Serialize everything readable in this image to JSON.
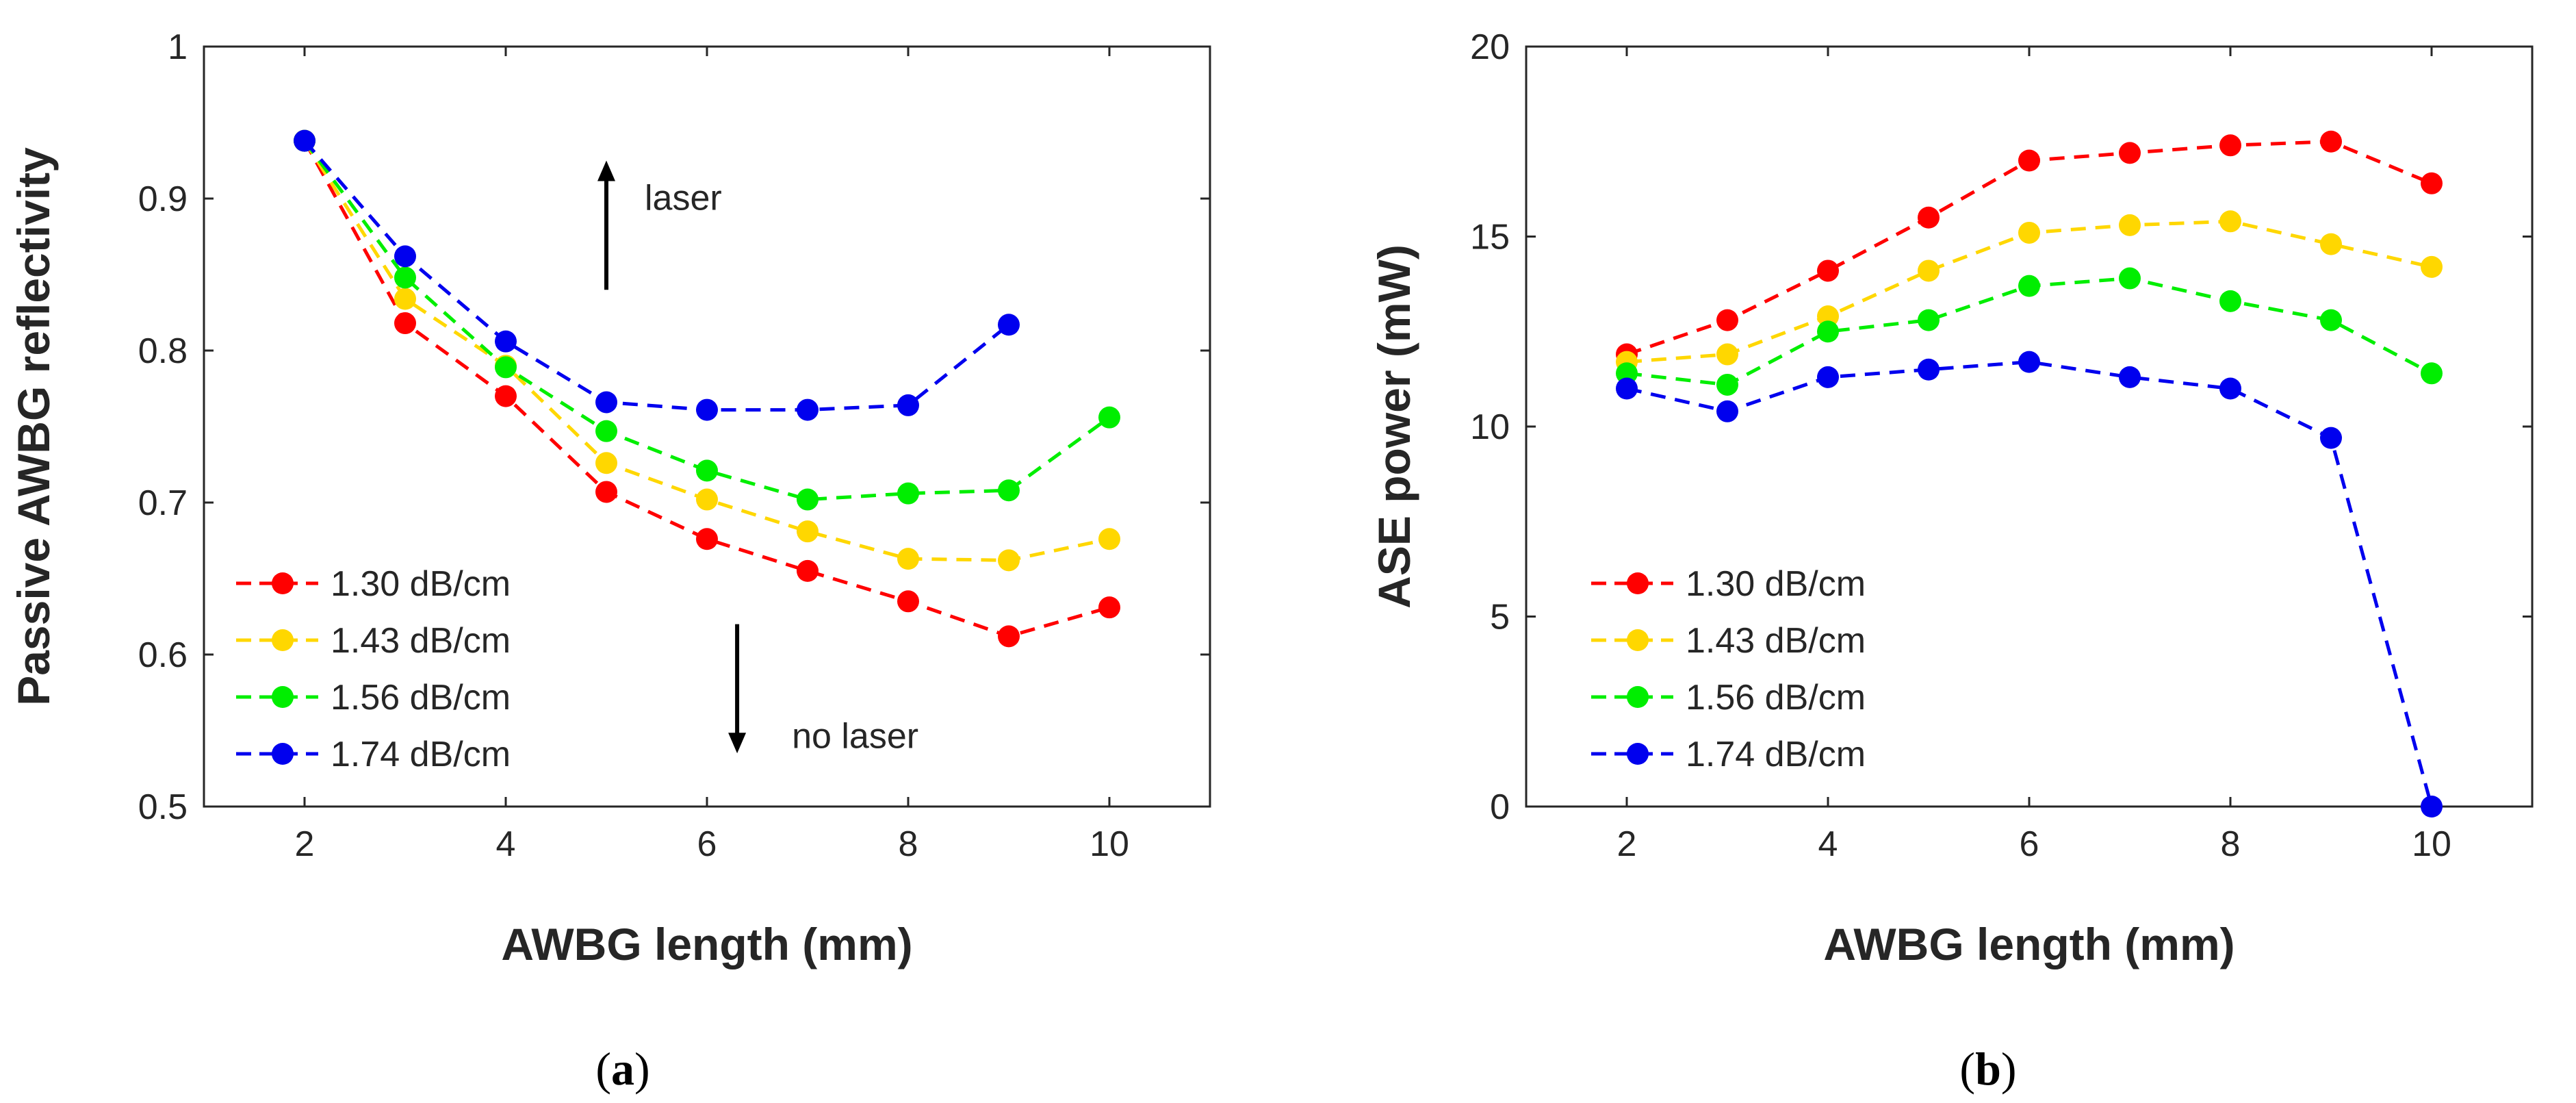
{
  "chart_data": [
    {
      "id": "a",
      "type": "line",
      "caption": "a",
      "xlabel": "AWBG length (mm)",
      "ylabel": "Passive AWBG reflectivity",
      "xlim": [
        1,
        11
      ],
      "ylim": [
        0.5,
        1
      ],
      "xticks": [
        2,
        4,
        6,
        8,
        10
      ],
      "yticks": [
        0.5,
        0.6,
        0.7,
        0.8,
        0.9,
        1
      ],
      "ytick_labels": [
        "0.5",
        "0.6",
        "0.7",
        "0.8",
        "0.9",
        "1"
      ],
      "legend_position": "bottom-left",
      "series": [
        {
          "name": "1.30 dB/cm",
          "color": "#ff0000",
          "x": [
            2,
            3,
            4,
            5,
            6,
            7,
            8,
            9,
            10
          ],
          "values": [
            0.938,
            0.818,
            0.77,
            0.707,
            0.676,
            0.655,
            0.635,
            0.612,
            0.631
          ]
        },
        {
          "name": "1.43 dB/cm",
          "color": "#ffd700",
          "x": [
            2,
            3,
            4,
            5,
            6,
            7,
            8,
            9,
            10
          ],
          "values": [
            0.938,
            0.834,
            0.79,
            0.726,
            0.702,
            0.681,
            0.663,
            0.662,
            0.676
          ]
        },
        {
          "name": "1.56 dB/cm",
          "color": "#00ee00",
          "x": [
            2,
            3,
            4,
            5,
            6,
            7,
            8,
            9,
            10
          ],
          "values": [
            0.938,
            0.848,
            0.789,
            0.747,
            0.721,
            0.702,
            0.706,
            0.708,
            0.756
          ]
        },
        {
          "name": "1.74 dB/cm",
          "color": "#0000ee",
          "x": [
            2,
            3,
            4,
            5,
            6,
            7,
            8,
            9
          ],
          "values": [
            0.938,
            0.862,
            0.806,
            0.766,
            0.761,
            0.761,
            0.764,
            0.817
          ]
        }
      ],
      "annotations": [
        {
          "text": "laser",
          "direction": "up",
          "x": 5,
          "y_from": 0.84,
          "y_to": 0.925
        },
        {
          "text": "no laser",
          "direction": "down",
          "x": 6.3,
          "y_from": 0.62,
          "y_to": 0.535
        }
      ]
    },
    {
      "id": "b",
      "type": "line",
      "caption": "b",
      "xlabel": "AWBG length (mm)",
      "ylabel": "ASE power (mW)",
      "xlim": [
        1,
        11
      ],
      "ylim": [
        0,
        20
      ],
      "xticks": [
        2,
        4,
        6,
        8,
        10
      ],
      "yticks": [
        0,
        5,
        10,
        15,
        20
      ],
      "ytick_labels": [
        "0",
        "5",
        "10",
        "15",
        "20"
      ],
      "legend_position": "bottom-left",
      "series": [
        {
          "name": "1.30 dB/cm",
          "color": "#ff0000",
          "x": [
            2,
            3,
            4,
            5,
            6,
            7,
            8,
            9,
            10
          ],
          "values": [
            11.9,
            12.8,
            14.1,
            15.5,
            17.0,
            17.2,
            17.4,
            17.5,
            16.4
          ]
        },
        {
          "name": "1.43 dB/cm",
          "color": "#ffd700",
          "x": [
            2,
            3,
            4,
            5,
            6,
            7,
            8,
            9,
            10
          ],
          "values": [
            11.7,
            11.9,
            12.9,
            14.1,
            15.1,
            15.3,
            15.4,
            14.8,
            14.2
          ]
        },
        {
          "name": "1.56 dB/cm",
          "color": "#00ee00",
          "x": [
            2,
            3,
            4,
            5,
            6,
            7,
            8,
            9,
            10
          ],
          "values": [
            11.4,
            11.1,
            12.5,
            12.8,
            13.7,
            13.9,
            13.3,
            12.8,
            11.4
          ]
        },
        {
          "name": "1.74 dB/cm",
          "color": "#0000ee",
          "x": [
            2,
            3,
            4,
            5,
            6,
            7,
            8,
            9,
            10
          ],
          "values": [
            11.0,
            10.4,
            11.3,
            11.5,
            11.7,
            11.3,
            11.0,
            9.7,
            0.0
          ]
        }
      ]
    }
  ]
}
